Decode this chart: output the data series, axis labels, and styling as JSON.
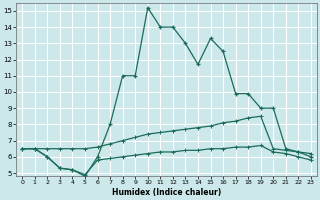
{
  "xlabel": "Humidex (Indice chaleur)",
  "background_color": "#cce8ea",
  "grid_color": "#ffffff",
  "line_color": "#1a6b5a",
  "xlim": [
    -0.5,
    23.5
  ],
  "ylim": [
    4.8,
    15.5
  ],
  "yticks": [
    5,
    6,
    7,
    8,
    9,
    10,
    11,
    12,
    13,
    14,
    15
  ],
  "xticks": [
    0,
    1,
    2,
    3,
    4,
    5,
    6,
    7,
    8,
    9,
    10,
    11,
    12,
    13,
    14,
    15,
    16,
    17,
    18,
    19,
    20,
    21,
    22,
    23
  ],
  "line1_x": [
    0,
    1,
    2,
    3,
    4,
    5,
    6,
    7,
    8,
    9,
    10,
    11,
    12,
    13,
    14,
    15,
    16,
    17,
    18,
    19,
    20,
    21,
    22,
    23
  ],
  "line1_y": [
    6.5,
    6.5,
    6.0,
    5.3,
    5.2,
    4.8,
    6.0,
    8.0,
    11.0,
    11.0,
    15.2,
    14.0,
    14.0,
    13.0,
    11.7,
    13.3,
    12.5,
    9.9,
    9.9,
    9.0,
    9.0,
    6.5,
    6.3,
    6.0
  ],
  "line2_x": [
    0,
    1,
    2,
    3,
    4,
    5,
    6,
    7,
    8,
    9,
    10,
    11,
    12,
    13,
    14,
    15,
    16,
    17,
    18,
    19,
    20,
    21,
    22,
    23
  ],
  "line2_y": [
    6.5,
    6.5,
    6.5,
    6.5,
    6.5,
    6.5,
    6.6,
    6.8,
    7.0,
    7.2,
    7.4,
    7.5,
    7.6,
    7.7,
    7.8,
    7.9,
    8.1,
    8.2,
    8.4,
    8.5,
    6.5,
    6.4,
    6.3,
    6.2
  ],
  "line3_x": [
    0,
    1,
    2,
    3,
    4,
    5,
    6,
    7,
    8,
    9,
    10,
    11,
    12,
    13,
    14,
    15,
    16,
    17,
    18,
    19,
    20,
    21,
    22,
    23
  ],
  "line3_y": [
    6.5,
    6.5,
    6.0,
    5.3,
    5.2,
    4.9,
    5.8,
    5.9,
    6.0,
    6.1,
    6.2,
    6.3,
    6.3,
    6.4,
    6.4,
    6.5,
    6.5,
    6.6,
    6.6,
    6.7,
    6.3,
    6.2,
    6.0,
    5.8
  ]
}
